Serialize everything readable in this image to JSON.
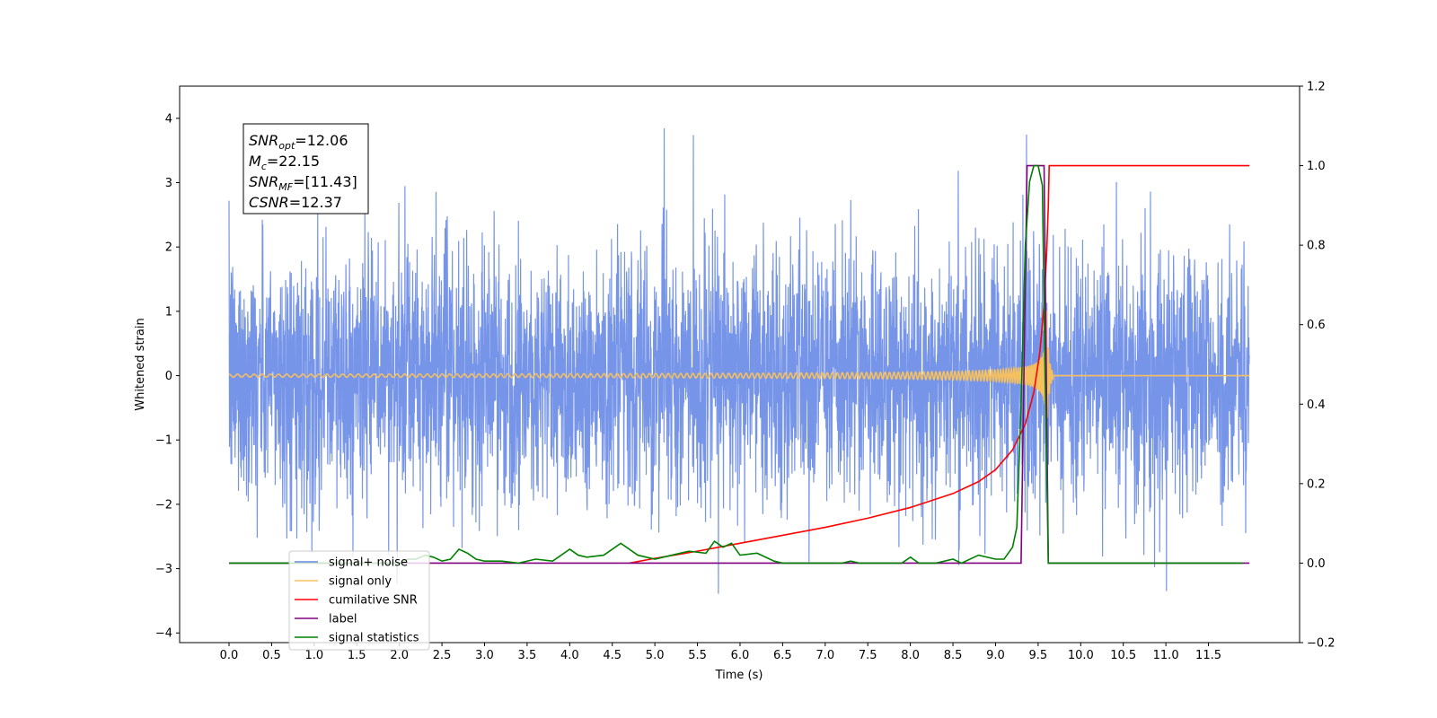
{
  "chart_data": {
    "type": "line",
    "title": "",
    "xlabel": "Time (s)",
    "ylabel": "Whitened strain",
    "y2label": "",
    "xlim": [
      -0.58,
      12.57
    ],
    "ylim": [
      -4.15,
      4.5
    ],
    "y2lim": [
      -0.2,
      1.2
    ],
    "x_ticks": [
      0.0,
      0.5,
      1.0,
      1.5,
      2.0,
      2.5,
      3.0,
      3.5,
      4.0,
      4.5,
      5.0,
      5.5,
      6.0,
      6.5,
      7.0,
      7.5,
      8.0,
      8.5,
      9.0,
      9.5,
      10.0,
      10.5,
      11.0,
      11.5
    ],
    "x_tick_labels": [
      "0.0",
      "0.5",
      "1.0",
      "1.5",
      "2.0",
      "2.5",
      "3.0",
      "3.5",
      "4.0",
      "4.5",
      "5.0",
      "5.5",
      "6.0",
      "6.5",
      "7.0",
      "7.5",
      "8.0",
      "8.5",
      "9.0",
      "9.5",
      "10.0",
      "10.5",
      "11.0",
      "11.5"
    ],
    "y_ticks": [
      4,
      3,
      2,
      1,
      0,
      -1,
      -2,
      -3,
      -4
    ],
    "y_tick_labels": [
      "4",
      "3",
      "2",
      "1",
      "0",
      "−1",
      "−2",
      "−3",
      "−4"
    ],
    "y2_ticks": [
      1.2,
      1.0,
      0.8,
      0.6,
      0.4,
      0.2,
      0.0,
      -0.2
    ],
    "y2_tick_labels": [
      "1.2",
      "1.0",
      "0.8",
      "0.6",
      "0.4",
      "0.2",
      "0.0",
      "−0.2"
    ],
    "grid": false,
    "legend_position": "bottom-left",
    "series": [
      {
        "name": "signal+ noise",
        "color": "#6a8be6",
        "axis": "left",
        "kind": "noise",
        "x_range": [
          0.0,
          11.98
        ],
        "std": 1.0
      },
      {
        "name": "signal only",
        "color": "#f5c060",
        "axis": "left",
        "kind": "chirp",
        "merger_time": 9.6,
        "peak_amplitude": 1.0
      },
      {
        "name": "cumilative SNR",
        "color": "#ff0000",
        "axis": "right",
        "x": [
          4.7,
          5.0,
          5.5,
          6.0,
          6.5,
          7.0,
          7.5,
          8.0,
          8.5,
          8.8,
          9.0,
          9.2,
          9.35,
          9.45,
          9.52,
          9.57,
          9.6,
          9.62,
          9.63,
          11.98
        ],
        "y": [
          0.0,
          0.012,
          0.03,
          0.05,
          0.07,
          0.09,
          0.113,
          0.14,
          0.175,
          0.205,
          0.235,
          0.285,
          0.35,
          0.43,
          0.53,
          0.65,
          0.78,
          0.9,
          1.0,
          1.0
        ]
      },
      {
        "name": "label",
        "color": "#800080",
        "axis": "right",
        "x": [
          0.0,
          9.3,
          9.37,
          9.57,
          9.62,
          11.98
        ],
        "y": [
          0.0,
          0.0,
          1.0,
          1.0,
          0.0,
          0.0
        ]
      },
      {
        "name": "signal statistics",
        "color": "#008000",
        "axis": "right",
        "x": [
          0.0,
          2.0,
          2.1,
          2.2,
          2.3,
          2.4,
          2.5,
          2.6,
          2.7,
          2.8,
          2.9,
          3.0,
          3.2,
          3.4,
          3.6,
          3.8,
          4.0,
          4.1,
          4.2,
          4.4,
          4.6,
          4.8,
          5.0,
          5.2,
          5.4,
          5.6,
          5.7,
          5.8,
          5.9,
          6.0,
          6.2,
          6.4,
          6.5,
          6.6,
          7.2,
          7.3,
          7.4,
          7.9,
          8.0,
          8.1,
          8.3,
          8.5,
          8.6,
          8.8,
          9.0,
          9.1,
          9.2,
          9.25,
          9.3,
          9.35,
          9.4,
          9.45,
          9.5,
          9.55,
          9.58,
          9.62,
          9.65,
          11.9
        ],
        "y": [
          0.0,
          0.0,
          0.01,
          0.01,
          0.02,
          0.015,
          0.005,
          0.01,
          0.035,
          0.025,
          0.01,
          0.005,
          0.005,
          0.0,
          0.01,
          0.005,
          0.035,
          0.02,
          0.015,
          0.02,
          0.05,
          0.02,
          0.01,
          0.02,
          0.03,
          0.025,
          0.055,
          0.04,
          0.05,
          0.02,
          0.025,
          0.005,
          0.0,
          0.0,
          0.0,
          0.005,
          0.0,
          0.0,
          0.015,
          0.0,
          0.0,
          0.01,
          0.0,
          0.02,
          0.01,
          0.01,
          0.04,
          0.09,
          0.4,
          0.8,
          0.96,
          1.0,
          1.0,
          0.95,
          0.5,
          0.0,
          0.0,
          0.0
        ]
      }
    ],
    "annotation": {
      "position": "top-left",
      "lines": [
        {
          "main": "SNR",
          "sub": "opt",
          "value": "=12.06"
        },
        {
          "main": "M",
          "sub": "c",
          "value": "=22.15"
        },
        {
          "main": "SNR",
          "sub": "MF",
          "value": "=[11.43]"
        },
        {
          "main": "CSNR",
          "sub": "",
          "value": "=12.37"
        }
      ]
    }
  }
}
